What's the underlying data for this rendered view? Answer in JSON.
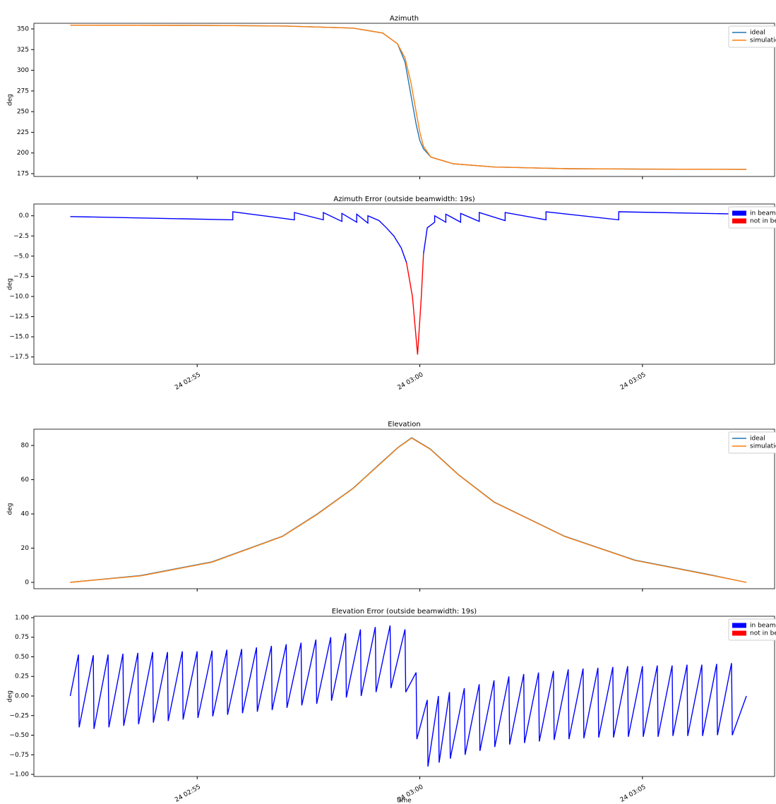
{
  "chart_data": [
    {
      "type": "line",
      "title": "Azimuth",
      "ylabel": "deg",
      "xlim": [
        "24 02:51:20",
        "24 03:07:58"
      ],
      "ylim": [
        171.6,
        356.8
      ],
      "yticks": [
        175,
        200,
        225,
        250,
        275,
        300,
        325,
        350
      ],
      "legend": {
        "loc": "upper right",
        "handle": "line"
      },
      "x": [
        "24 02:52:09",
        "24 02:55:00",
        "24 02:57:00",
        "24 02:58:30",
        "24 02:59:10",
        "24 02:59:30",
        "24 02:59:40",
        "24 02:59:48",
        "24 02:59:55",
        "24 03:00:00",
        "24 03:00:05",
        "24 03:00:15",
        "24 03:00:45",
        "24 03:01:40",
        "24 03:03:20",
        "24 03:05:00",
        "24 03:07:20"
      ],
      "series": [
        {
          "name": "ideal",
          "color": "#1f77b4",
          "values": [
            354.5,
            354.3,
            353.5,
            351,
            345,
            332,
            310,
            270,
            235,
            215,
            205,
            195,
            187,
            183,
            181,
            180.5,
            180.2
          ]
        },
        {
          "name": "simulation",
          "color": "#ff7f0e",
          "values": [
            354.5,
            354.3,
            353.5,
            351,
            345,
            332,
            315,
            285,
            250,
            225,
            208,
            195,
            187,
            183,
            181,
            180.5,
            180.2
          ]
        }
      ]
    },
    {
      "type": "line",
      "title": "Azimuth Error (outside beamwidth: 19s)",
      "ylabel": "deg",
      "xlim": [
        "24 02:51:20",
        "24 03:07:58"
      ],
      "xticks": [
        "24 02:55",
        "24 03:00",
        "24 03:05"
      ],
      "ylim": [
        -18.4,
        1.46
      ],
      "yticks": [
        {
          "value": 0,
          "label": "0.0"
        },
        {
          "value": -2.5,
          "label": "−2.5"
        },
        {
          "value": -5,
          "label": "−5.0"
        },
        {
          "value": -7.5,
          "label": "−7.5"
        },
        {
          "value": -10,
          "label": "−10.0"
        },
        {
          "value": -12.5,
          "label": "−12.5"
        },
        {
          "value": -15,
          "label": "−15.0"
        },
        {
          "value": -17.5,
          "label": "−17.5"
        }
      ],
      "legend": {
        "loc": "upper right",
        "handle": "patch"
      },
      "x": [
        "24 02:52:09",
        "24 02:55:48",
        "24 02:55:48",
        "24 02:57:11",
        "24 02:57:11",
        "24 02:57:50",
        "24 02:57:50",
        "24 02:58:15",
        "24 02:58:15",
        "24 02:58:35",
        "24 02:58:35",
        "24 02:58:50",
        "24 02:58:50",
        "24 02:59:05",
        "24 02:59:15",
        "24 02:59:25",
        "24 02:59:35",
        "24 02:59:42",
        "24 02:59:50",
        "24 02:59:57",
        "24 03:00:02",
        "24 03:00:05",
        "24 03:00:10",
        "24 03:00:20",
        "24 03:00:20",
        "24 03:00:35",
        "24 03:00:35",
        "24 03:00:55",
        "24 03:00:55",
        "24 03:01:20",
        "24 03:01:20",
        "24 03:01:55",
        "24 03:01:55",
        "24 03:02:50",
        "24 03:02:50",
        "24 03:04:28",
        "24 03:04:28",
        "24 03:07:20"
      ],
      "series": [
        {
          "name": "in beamwidth",
          "color": "#0000ff",
          "values": [
            -0.1,
            -0.5,
            0.5,
            -0.5,
            0.4,
            -0.5,
            0.4,
            -0.7,
            0.3,
            -0.8,
            0.2,
            -0.9,
            0.0,
            -0.6,
            -1.5,
            -2.5,
            -4.0,
            -5.8,
            null,
            null,
            null,
            -4.7,
            -1.5,
            -0.8,
            0.0,
            -0.8,
            0.2,
            -0.8,
            0.3,
            -0.7,
            0.4,
            -0.6,
            0.4,
            -0.5,
            0.5,
            -0.5,
            0.5,
            0.2
          ]
        },
        {
          "name": "not in beamwidth",
          "color": "#ff0000",
          "values": [
            null,
            null,
            null,
            null,
            null,
            null,
            null,
            null,
            null,
            null,
            null,
            null,
            null,
            null,
            null,
            null,
            null,
            -5.8,
            -10,
            -17.2,
            -10,
            -4.7,
            null,
            null,
            null,
            null,
            null,
            null,
            null,
            null,
            null,
            null,
            null,
            null,
            null,
            null,
            null,
            null
          ]
        }
      ]
    },
    {
      "type": "line",
      "title": "Elevation",
      "ylabel": "deg",
      "xlim": [
        "24 02:51:20",
        "24 03:07:58"
      ],
      "ylim": [
        -3.7,
        89.5
      ],
      "yticks": [
        0,
        20,
        40,
        60,
        80
      ],
      "legend": {
        "loc": "upper right",
        "handle": "line"
      },
      "x": [
        "24 02:52:09",
        "24 02:53:44",
        "24 02:55:20",
        "24 02:56:55",
        "24 02:57:42",
        "24 02:58:30",
        "24 02:59:08",
        "24 02:59:31",
        "24 02:59:49",
        "24 03:00:14",
        "24 03:00:52",
        "24 03:01:40",
        "24 03:03:15",
        "24 03:04:50",
        "24 03:06:25",
        "24 03:07:20"
      ],
      "series": [
        {
          "name": "ideal",
          "color": "#1f77b4",
          "values": [
            0,
            4,
            12,
            27,
            40,
            55,
            70,
            79,
            84.5,
            78,
            63,
            47,
            27,
            13,
            5,
            0
          ]
        },
        {
          "name": "simulation",
          "color": "#ff7f0e",
          "values": [
            0,
            3.8,
            11.8,
            26.8,
            39.8,
            54.8,
            69.8,
            78.8,
            84.3,
            77.8,
            62.8,
            46.8,
            26.8,
            12.8,
            4.8,
            0
          ]
        }
      ]
    },
    {
      "type": "line",
      "title": "Elevation Error (outside beamwidth: 19s)",
      "ylabel": "deg",
      "xlabel": "time",
      "xlim": [
        "24 02:51:20",
        "24 03:07:58"
      ],
      "xticks": [
        "24 02:55",
        "24 03:00",
        "24 03:05"
      ],
      "ylim": [
        -1.027,
        1.018
      ],
      "yticks": [
        {
          "value": 1,
          "label": "1.00"
        },
        {
          "value": 0.75,
          "label": "0.75"
        },
        {
          "value": 0.5,
          "label": "0.50"
        },
        {
          "value": 0.25,
          "label": "0.25"
        },
        {
          "value": 0,
          "label": "0.00"
        },
        {
          "value": -0.25,
          "label": "−0.25"
        },
        {
          "value": -0.5,
          "label": "−0.50"
        },
        {
          "value": -0.75,
          "label": "−0.75"
        },
        {
          "value": -1,
          "label": "−1.00"
        }
      ],
      "legend": {
        "loc": "upper right",
        "handle": "patch"
      },
      "x": [
        "24 02:52:09",
        "24 02:52:20",
        "24 02:52:21",
        "24 02:52:40",
        "24 02:52:41",
        "24 02:53:00",
        "24 02:53:01",
        "24 02:53:20",
        "24 02:53:21",
        "24 02:53:40",
        "24 02:53:41",
        "24 02:54:00",
        "24 02:54:01",
        "24 02:54:20",
        "24 02:54:21",
        "24 02:54:40",
        "24 02:54:41",
        "24 02:55:00",
        "24 02:55:01",
        "24 02:55:20",
        "24 02:55:21",
        "24 02:55:40",
        "24 02:55:41",
        "24 02:56:00",
        "24 02:56:01",
        "24 02:56:20",
        "24 02:56:21",
        "24 02:56:40",
        "24 02:56:41",
        "24 02:57:00",
        "24 02:57:01",
        "24 02:57:20",
        "24 02:57:21",
        "24 02:57:40",
        "24 02:57:41",
        "24 02:58:00",
        "24 02:58:01",
        "24 02:58:20",
        "24 02:58:21",
        "24 02:58:40",
        "24 02:58:41",
        "24 02:59:00",
        "24 02:59:01",
        "24 02:59:20",
        "24 02:59:21",
        "24 02:59:40",
        "24 02:59:41",
        "24 02:59:55",
        "24 02:59:56",
        "24 03:00:10",
        "24 03:00:11",
        "24 03:00:25",
        "24 03:00:26",
        "24 03:00:40",
        "24 03:00:41",
        "24 03:01:00",
        "24 03:01:01",
        "24 03:01:20",
        "24 03:01:21",
        "24 03:01:40",
        "24 03:01:41",
        "24 03:02:00",
        "24 03:02:01",
        "24 03:02:20",
        "24 03:02:21",
        "24 03:02:40",
        "24 03:02:41",
        "24 03:03:00",
        "24 03:03:01",
        "24 03:03:20",
        "24 03:03:21",
        "24 03:03:40",
        "24 03:03:41",
        "24 03:04:00",
        "24 03:04:01",
        "24 03:04:20",
        "24 03:04:21",
        "24 03:04:40",
        "24 03:04:41",
        "24 03:05:00",
        "24 03:05:01",
        "24 03:05:20",
        "24 03:05:21",
        "24 03:05:40",
        "24 03:05:41",
        "24 03:06:00",
        "24 03:06:01",
        "24 03:06:20",
        "24 03:06:21",
        "24 03:06:40",
        "24 03:06:41",
        "24 03:07:00",
        "24 03:07:01",
        "24 03:07:20"
      ],
      "series": [
        {
          "name": "in beamwidth",
          "color": "#0000ff",
          "values": [
            0,
            0.53,
            -0.4,
            0.52,
            -0.42,
            0.53,
            -0.4,
            0.54,
            -0.38,
            0.55,
            -0.36,
            0.56,
            -0.34,
            0.56,
            -0.32,
            0.57,
            -0.3,
            0.57,
            -0.28,
            0.58,
            -0.26,
            0.59,
            -0.24,
            0.6,
            -0.22,
            0.62,
            -0.2,
            0.64,
            -0.18,
            0.66,
            -0.15,
            0.68,
            -0.12,
            0.72,
            -0.1,
            0.75,
            -0.06,
            0.8,
            -0.02,
            0.85,
            0.0,
            0.88,
            0.05,
            0.9,
            0.1,
            0.85,
            0.05,
            0.3,
            -0.55,
            -0.05,
            -0.9,
            0.0,
            -0.85,
            0.05,
            -0.8,
            0.1,
            -0.75,
            0.15,
            -0.7,
            0.2,
            -0.65,
            0.25,
            -0.62,
            0.28,
            -0.6,
            0.3,
            -0.58,
            0.32,
            -0.56,
            0.34,
            -0.55,
            0.35,
            -0.54,
            0.36,
            -0.53,
            0.37,
            -0.53,
            0.38,
            -0.52,
            0.38,
            -0.52,
            0.39,
            -0.52,
            0.39,
            -0.51,
            0.4,
            -0.51,
            0.4,
            -0.51,
            0.41,
            -0.5,
            0.42,
            -0.5,
            0
          ]
        },
        {
          "name": "not in beamwidth",
          "color": "#ff0000",
          "x": [],
          "values": []
        }
      ]
    }
  ]
}
